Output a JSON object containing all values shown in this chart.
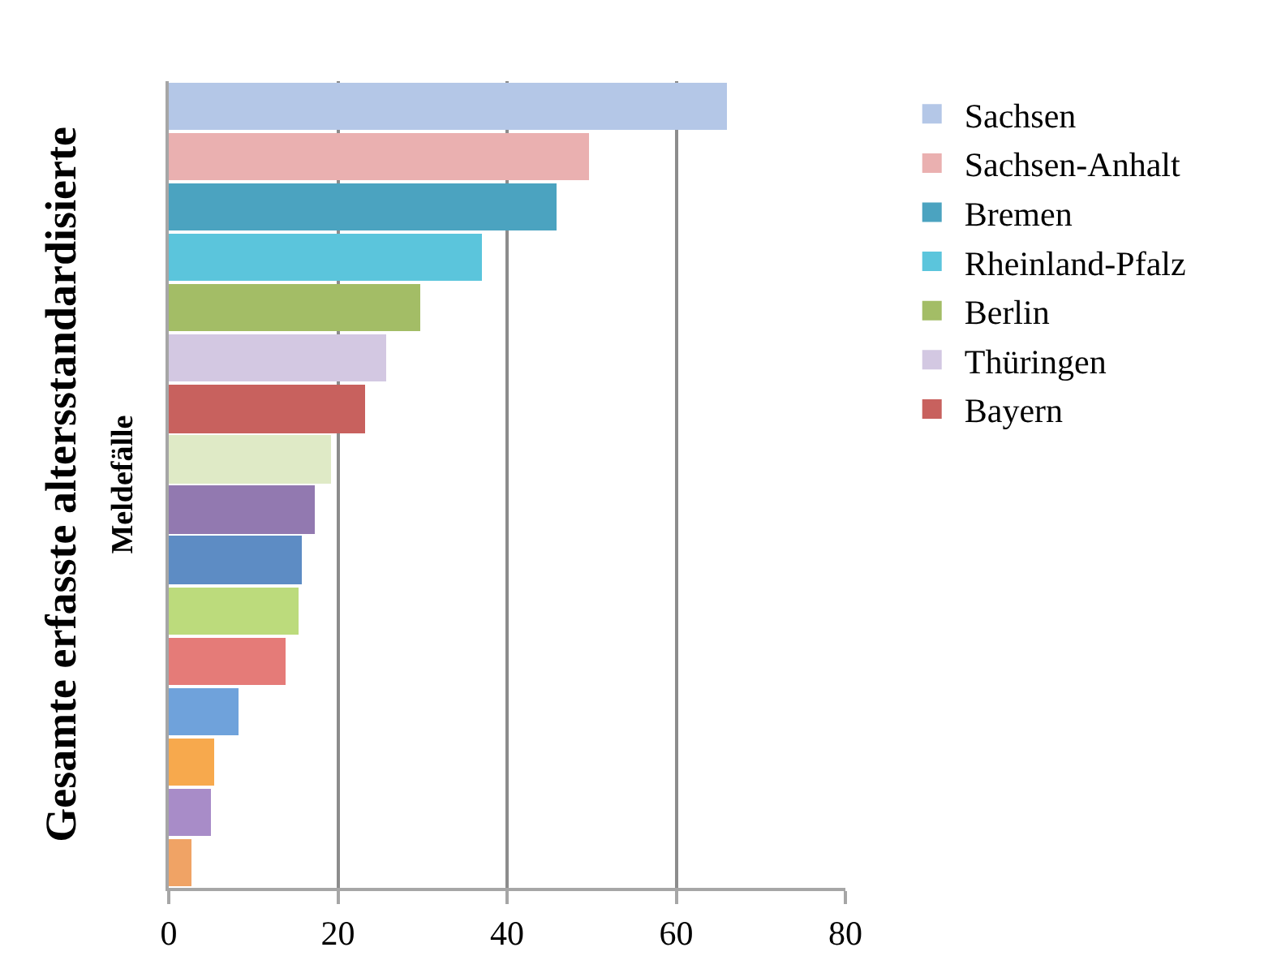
{
  "chart_data": {
    "type": "bar",
    "orientation": "horizontal",
    "ylabel": "Gesamte erfasste altersstandardisierte\nMeldefälle",
    "categories": [
      null,
      null,
      null,
      null,
      null,
      null,
      null,
      null,
      null,
      null,
      null,
      null,
      null,
      null,
      null,
      null
    ],
    "xlim": [
      0,
      80
    ],
    "xticks": [
      0,
      20,
      40,
      60,
      80
    ],
    "grid": "x",
    "legend": "right",
    "series": [
      {
        "name": "Sachsen",
        "color": "#b4c7e7",
        "values": [
          66,
          null,
          null,
          null,
          null,
          null,
          null,
          null,
          null,
          null,
          null,
          null,
          null,
          null,
          null,
          null
        ]
      },
      {
        "name": "Sachsen-Anhalt",
        "color": "#eab0b0",
        "values": [
          null,
          49.7,
          null,
          null,
          null,
          null,
          null,
          null,
          null,
          null,
          null,
          null,
          null,
          null,
          null,
          null
        ]
      },
      {
        "name": "Bremen",
        "color": "#4ba3c0",
        "values": [
          null,
          null,
          45.8,
          null,
          null,
          null,
          null,
          null,
          null,
          null,
          null,
          null,
          null,
          null,
          null,
          null
        ]
      },
      {
        "name": "Rheinland-Pfalz",
        "color": "#5bc5dc",
        "values": [
          null,
          null,
          null,
          37.1,
          null,
          null,
          null,
          null,
          null,
          null,
          null,
          null,
          null,
          null,
          null,
          null
        ]
      },
      {
        "name": "Berlin",
        "color": "#a3bd66",
        "values": [
          null,
          null,
          null,
          null,
          29.8,
          null,
          null,
          null,
          null,
          null,
          null,
          null,
          null,
          null,
          null,
          null
        ]
      },
      {
        "name": "Thüringen",
        "color": "#d3c8e2",
        "values": [
          null,
          null,
          null,
          null,
          null,
          25.8,
          null,
          null,
          null,
          null,
          null,
          null,
          null,
          null,
          null,
          null
        ]
      },
      {
        "name": "Bayern",
        "color": "#c8615e",
        "values": [
          null,
          null,
          null,
          null,
          null,
          null,
          23.3,
          null,
          null,
          null,
          null,
          null,
          null,
          null,
          null,
          null
        ]
      },
      {
        "color": "#dfeac6",
        "values": [
          null,
          null,
          null,
          null,
          null,
          null,
          null,
          19.2,
          null,
          null,
          null,
          null,
          null,
          null,
          null,
          null
        ]
      },
      {
        "color": "#9279b0",
        "values": [
          null,
          null,
          null,
          null,
          null,
          null,
          null,
          null,
          17.3,
          null,
          null,
          null,
          null,
          null,
          null,
          null
        ]
      },
      {
        "color": "#5d8cc4",
        "values": [
          null,
          null,
          null,
          null,
          null,
          null,
          null,
          null,
          null,
          15.7,
          null,
          null,
          null,
          null,
          null,
          null
        ]
      },
      {
        "color": "#bcdb7c",
        "values": [
          null,
          null,
          null,
          null,
          null,
          null,
          null,
          null,
          null,
          null,
          15.3,
          null,
          null,
          null,
          null,
          null
        ]
      },
      {
        "color": "#e57b78",
        "values": [
          null,
          null,
          null,
          null,
          null,
          null,
          null,
          null,
          null,
          null,
          null,
          13.9,
          null,
          null,
          null,
          null
        ]
      },
      {
        "color": "#6fa2db",
        "values": [
          null,
          null,
          null,
          null,
          null,
          null,
          null,
          null,
          null,
          null,
          null,
          null,
          8.2,
          null,
          null,
          null
        ]
      },
      {
        "color": "#f7a94d",
        "values": [
          null,
          null,
          null,
          null,
          null,
          null,
          null,
          null,
          null,
          null,
          null,
          null,
          null,
          5.4,
          null,
          null
        ]
      },
      {
        "color": "#a88cc8",
        "values": [
          null,
          null,
          null,
          null,
          null,
          null,
          null,
          null,
          null,
          null,
          null,
          null,
          null,
          null,
          5.0,
          null
        ]
      },
      {
        "color": "#f0a365",
        "values": [
          null,
          null,
          null,
          null,
          null,
          null,
          null,
          null,
          null,
          null,
          null,
          null,
          null,
          null,
          null,
          2.6
        ]
      }
    ]
  }
}
